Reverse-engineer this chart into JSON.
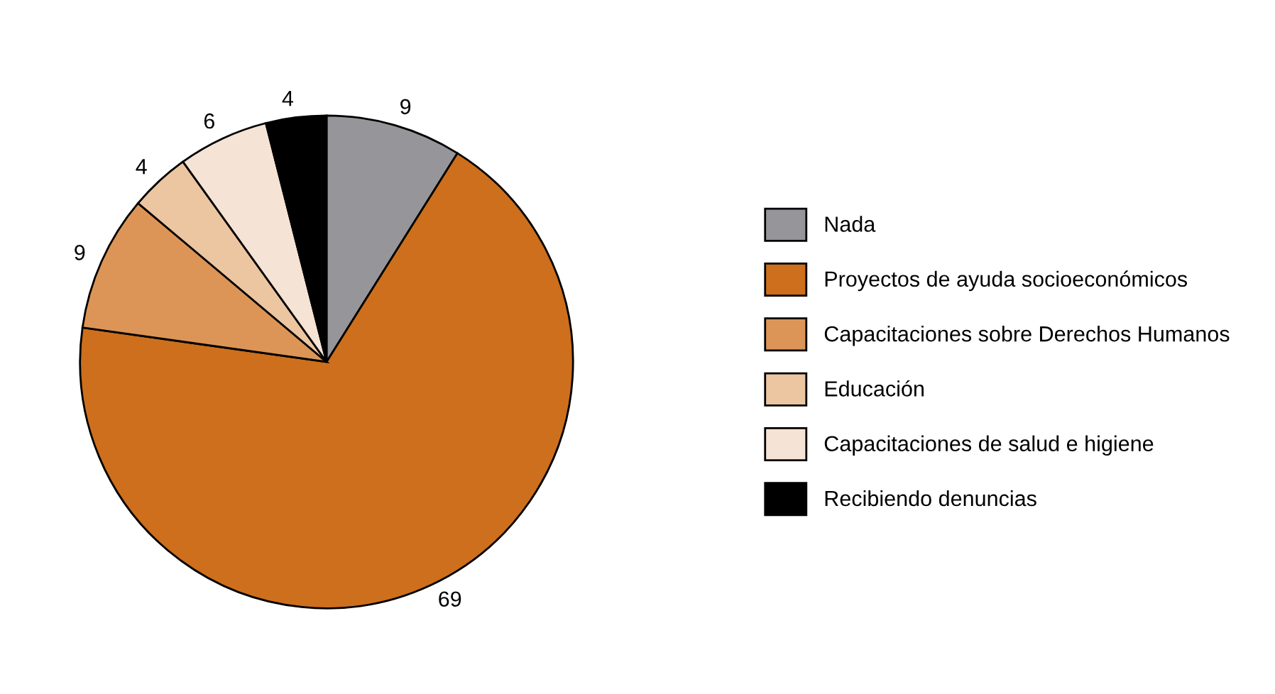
{
  "chart_data": {
    "type": "pie",
    "categories": [
      "Nada",
      "Proyectos de ayuda socioeconómicos",
      "Capacitaciones sobre Derechos Humanos",
      "Educación",
      "Capacitaciones de salud e higiene",
      "Recibiendo denuncias"
    ],
    "values": [
      9,
      69,
      9,
      4,
      6,
      4
    ],
    "colors": [
      "#96969a",
      "#cd6f1c",
      "#dc9556",
      "#ecc5a1",
      "#f5e3d5",
      "#000000"
    ],
    "data_labels": true,
    "legend": "right"
  }
}
